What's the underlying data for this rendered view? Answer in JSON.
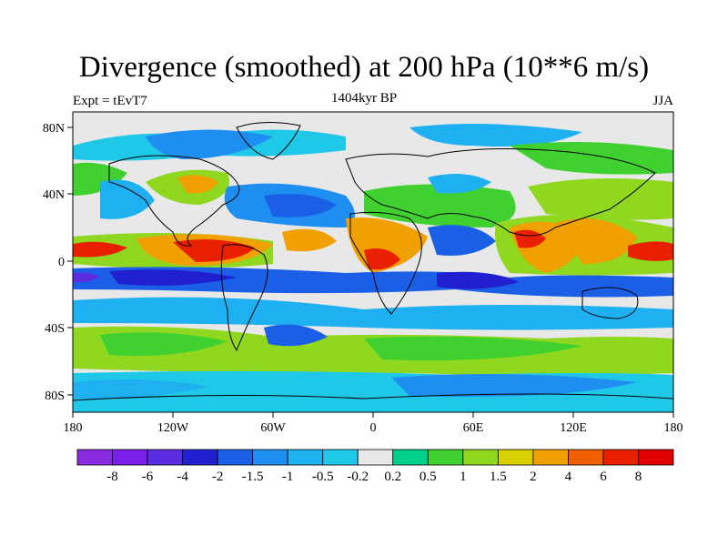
{
  "title": "Divergence (smoothed) at 200 hPa (10**6 m/s)",
  "subtitle_left": "Expt = tEvT7",
  "subtitle_center": "1404kyr BP",
  "subtitle_right": "JJA",
  "lat_labels": [
    "80N",
    "40N",
    "0",
    "40S",
    "80S"
  ],
  "lon_labels": [
    "180",
    "120W",
    "60W",
    "0",
    "60E",
    "120E",
    "180"
  ],
  "colorbar": {
    "labels": [
      "-8",
      "-6",
      "-4",
      "-2",
      "-1.5",
      "-1",
      "-0.5",
      "-0.2",
      "0.2",
      "0.5",
      "1",
      "1.5",
      "2",
      "4",
      "6",
      "8"
    ],
    "colors": [
      "#8a2be2",
      "#7a1fe8",
      "#5a2ee0",
      "#2020d0",
      "#1a5fe6",
      "#1e8ef0",
      "#1eb0f0",
      "#20c8e8",
      "#e8e8e8",
      "#00d08c",
      "#40d030",
      "#90d820",
      "#d8d000",
      "#f0a000",
      "#f06000",
      "#e82000",
      "#e00000"
    ]
  },
  "palette": {
    "background": "#e8e8e8",
    "land_outline": "#000000"
  }
}
